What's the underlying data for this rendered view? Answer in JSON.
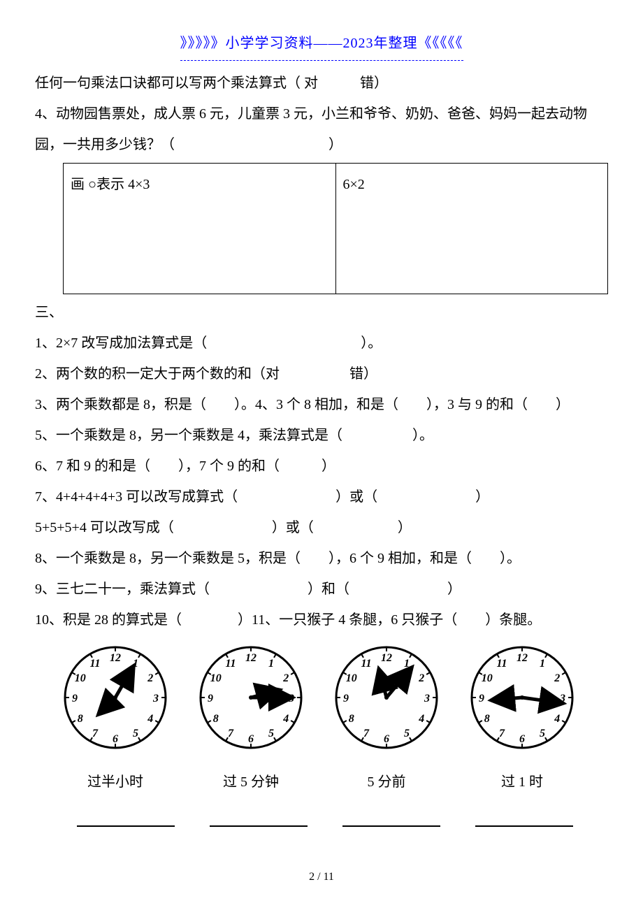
{
  "header": "》》》》》小学学习资料——2023年整理《《《《《",
  "q0": "任何一句乘法口诀都可以写两个乘法算式（ 对　　　错）",
  "q4": "4、动物园售票处，成人票 6 元，儿童票 3 元，小兰和爷爷、奶奶、爸爸、妈妈一起去动物园，一共用多少钱？（　　　　　　　　　　　）",
  "table": {
    "cellA": "画 ○表示 4×3",
    "cellB": "6×2"
  },
  "section3": "三、",
  "s3q1": "1、2×7 改写成加法算式是（　　　　　　　　　　　）。",
  "s3q2": "2、两个数的积一定大于两个数的和（对　　　　　错）",
  "s3q3": "3、两个乘数都是 8，积是（　　）。4、3 个 8 相加，和是（　　），3 与 9 的和（　　）",
  "s3q5": "5、一个乘数是 8，另一个乘数是 4，乘法算式是（　　　　　）。",
  "s3q6": "6、7 和 9 的和是（　　），7 个 9 的和（　　　）",
  "s3q7a": "7、4+4+4+4+3 可以改写成算式（　　　　　　　）或（　　　　　　　）",
  "s3q7b": "5+5+5+4 可以改写成（　　　　　　　）或（　　　　　　）",
  "s3q8": "8、一个乘数是 8，另一个乘数是 5，积是（　　），6 个 9 相加，和是（　　）。",
  "s3q9": "9、三七二十一，乘法算式（　　　　　　　）和（　　　　　　　）",
  "s3q10": "10、积是 28 的算式是（　　　　）11、一只猴子 4 条腿，6 只猴子（　　）条腿。",
  "clocks": [
    {
      "hourAngle": 30,
      "minuteAngle": 225,
      "caption": "过半小时",
      "hourLen": 38,
      "minLen": 20
    },
    {
      "hourAngle": 90,
      "minuteAngle": 75,
      "caption": "过 5 分钟",
      "hourLen": 45,
      "minLen": 28
    },
    {
      "hourAngle": 40,
      "minuteAngle": 345,
      "caption": "5 分前",
      "hourLen": 42,
      "minLen": 28
    },
    {
      "hourAngle": 98,
      "minuteAngle": 265,
      "caption": "过 1 时",
      "hourLen": 45,
      "minLen": 30
    }
  ],
  "pageNumber": "2 / 11"
}
